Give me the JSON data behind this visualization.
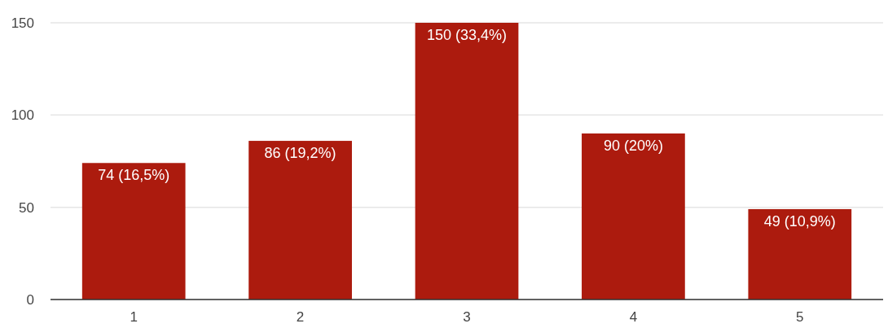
{
  "chart_data": {
    "type": "bar",
    "categories": [
      "1",
      "2",
      "3",
      "4",
      "5"
    ],
    "values": [
      74,
      86,
      150,
      90,
      49
    ],
    "color": "#ac1b0e",
    "value_labels": [
      "74 (16,5%)",
      "86 (19,2%)",
      "150 (33,4%)",
      "90 (20%)",
      "49 (10,9%)"
    ],
    "ylim": [
      0,
      150
    ],
    "yticks": [
      0,
      50,
      100,
      150
    ],
    "grid": "y"
  }
}
